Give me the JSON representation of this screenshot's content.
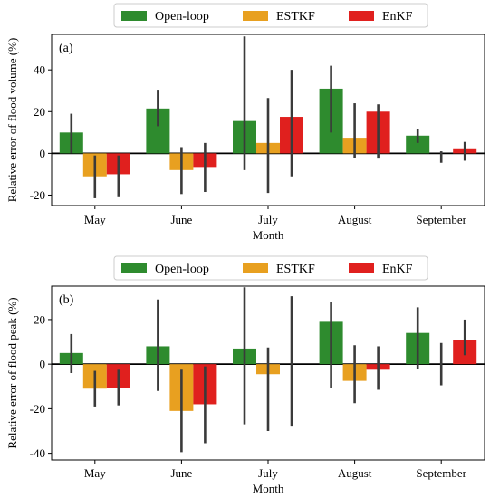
{
  "colors": {
    "open_loop": "#2e8b2e",
    "estkf": "#e8a020",
    "enkf": "#e0201e",
    "error_bar": "#3a3a3a"
  },
  "chart_data": [
    {
      "type": "bar",
      "panel_label": "(a)",
      "categories": [
        "May",
        "June",
        "July",
        "August",
        "September"
      ],
      "xlabel": "Month",
      "ylabel": "Relative error of flood volume (%)",
      "ylim": [
        -25,
        57
      ],
      "yticks": [
        -20,
        0,
        20,
        40
      ],
      "legend": "top",
      "series": [
        {
          "name": "Open-loop",
          "color_key": "open_loop",
          "values": [
            10,
            21.5,
            15.5,
            31,
            8.5
          ],
          "err_low": [
            0,
            13,
            -8,
            10,
            5
          ],
          "err_high": [
            19,
            30.5,
            56,
            42,
            11.5
          ]
        },
        {
          "name": "ESTKF",
          "color_key": "estkf",
          "values": [
            -11,
            -8,
            5,
            7.5,
            0
          ],
          "err_low": [
            -21.5,
            -19.5,
            -19,
            -2,
            -4.5
          ],
          "err_high": [
            -1,
            3,
            26.5,
            24,
            1
          ]
        },
        {
          "name": "EnKF",
          "color_key": "enkf",
          "values": [
            -10,
            -6.5,
            17.5,
            20,
            2
          ],
          "err_low": [
            -21,
            -18.5,
            -11,
            -2.5,
            -3.5
          ],
          "err_high": [
            -1,
            5,
            40,
            23.5,
            5.5
          ]
        }
      ]
    },
    {
      "type": "bar",
      "panel_label": "(b)",
      "categories": [
        "May",
        "June",
        "July",
        "August",
        "September"
      ],
      "xlabel": "Month",
      "ylabel": "Relative error of flood peak (%)",
      "ylim": [
        -43,
        35
      ],
      "yticks": [
        -40,
        -20,
        0,
        20
      ],
      "legend": "top",
      "series": [
        {
          "name": "Open-loop",
          "color_key": "open_loop",
          "values": [
            5,
            8,
            7,
            19,
            14
          ],
          "err_low": [
            -4,
            -12,
            -27,
            -10.5,
            -2
          ],
          "err_high": [
            13.5,
            29,
            34.5,
            28,
            25.5
          ]
        },
        {
          "name": "ESTKF",
          "color_key": "estkf",
          "values": [
            -11,
            -21,
            -4.5,
            -7.5,
            0
          ],
          "err_low": [
            -19,
            -39.5,
            -30,
            -17.5,
            -9.5
          ],
          "err_high": [
            -3,
            -2.5,
            7.5,
            8.5,
            9.5
          ]
        },
        {
          "name": "EnKF",
          "color_key": "enkf",
          "values": [
            -10.5,
            -18,
            0,
            -2.5,
            11
          ],
          "err_low": [
            -18.5,
            -35.5,
            -28,
            -11.5,
            4
          ],
          "err_high": [
            -2.5,
            -1,
            30.5,
            8,
            20
          ]
        }
      ]
    }
  ]
}
